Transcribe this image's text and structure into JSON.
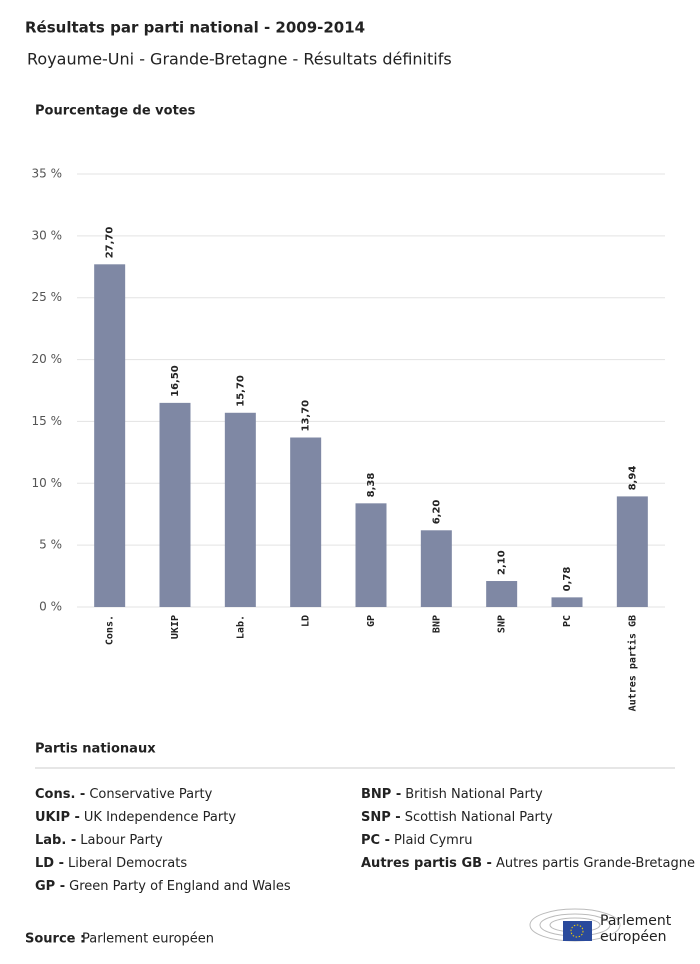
{
  "chart_data": {
    "type": "bar",
    "title": "Résultats par parti national - 2009-2014",
    "subtitle": "Royaume-Uni - Grande-Bretagne - Résultats définitifs",
    "y_label": "Pourcentage de votes",
    "categories": [
      "Cons.",
      "UKIP",
      "Lab.",
      "LD",
      "GP",
      "BNP",
      "SNP",
      "PC",
      "Autres partis GB"
    ],
    "values": [
      27.7,
      16.5,
      15.7,
      13.7,
      8.38,
      6.2,
      2.1,
      0.78,
      8.94
    ],
    "value_labels": [
      "27,70",
      "16,50",
      "15,70",
      "13,70",
      "8,38",
      "6,20",
      "2,10",
      "0,78",
      "8,94"
    ],
    "color": "#7f88a4",
    "ylim": [
      0,
      35
    ],
    "yticks": [
      {
        "value": 0,
        "label": "0 %"
      },
      {
        "value": 5,
        "label": "5 %"
      },
      {
        "value": 10,
        "label": "10 %"
      },
      {
        "value": 15,
        "label": "15 %"
      },
      {
        "value": 20,
        "label": "20 %"
      },
      {
        "value": 25,
        "label": "25 %"
      },
      {
        "value": 30,
        "label": "30 %"
      },
      {
        "value": 35,
        "label": "35 %"
      }
    ],
    "grid": true
  },
  "legend": {
    "title": "Partis nationaux",
    "items": [
      {
        "abbr": "Cons. -",
        "name": "Conservative Party"
      },
      {
        "abbr": "UKIP -",
        "name": "UK Independence Party"
      },
      {
        "abbr": "Lab. -",
        "name": "Labour Party"
      },
      {
        "abbr": "LD -",
        "name": "Liberal Democrats"
      },
      {
        "abbr": "GP -",
        "name": "Green Party of England and Wales"
      },
      {
        "abbr": "BNP -",
        "name": "British National Party"
      },
      {
        "abbr": "SNP -",
        "name": "Scottish National Party"
      },
      {
        "abbr": "PC -",
        "name": "Plaid Cymru"
      },
      {
        "abbr": "Autres partis GB -",
        "name": "Autres partis Grande-Bretagne"
      }
    ]
  },
  "footer": {
    "source_label": "Source :",
    "source": "Parlement européen",
    "logo_line1": "Parlement",
    "logo_line2": "européen"
  }
}
